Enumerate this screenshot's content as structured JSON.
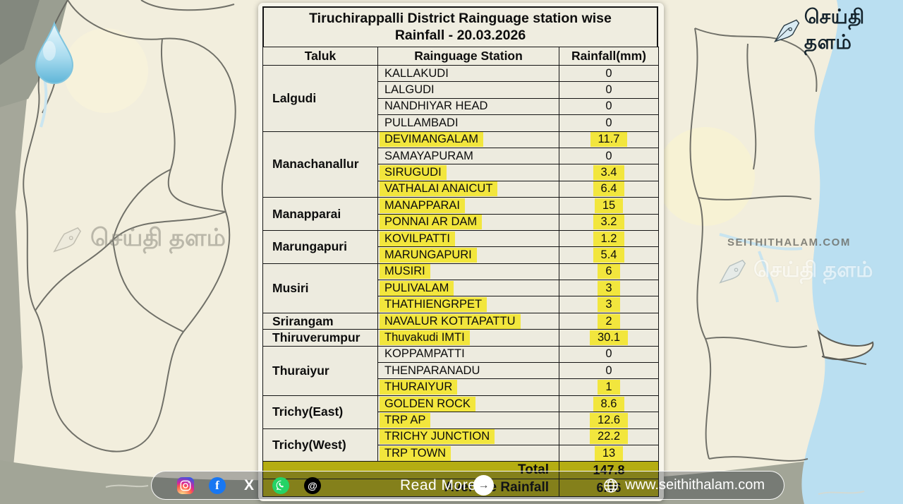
{
  "header": {
    "title_line1": "Tiruchirappalli District Rainguage station wise",
    "title_line2": "Rainfall - 20.03.2026"
  },
  "table": {
    "columns": [
      "Taluk",
      "Rainguage Station",
      "Rainfall(mm)"
    ],
    "groups": [
      {
        "taluk": "Lalgudi",
        "stations": [
          {
            "name": "KALLAKUDI",
            "rainfall": "0",
            "highlight": false
          },
          {
            "name": "LALGUDI",
            "rainfall": "0",
            "highlight": false
          },
          {
            "name": "NANDHIYAR HEAD",
            "rainfall": "0",
            "highlight": false
          },
          {
            "name": "PULLAMBADI",
            "rainfall": "0",
            "highlight": false
          }
        ]
      },
      {
        "taluk": "Manachanallur",
        "stations": [
          {
            "name": "DEVIMANGALAM",
            "rainfall": "11.7",
            "highlight": true
          },
          {
            "name": "SAMAYAPURAM",
            "rainfall": "0",
            "highlight": false
          },
          {
            "name": "SIRUGUDI",
            "rainfall": "3.4",
            "highlight": true
          },
          {
            "name": "VATHALAI ANAICUT",
            "rainfall": "6.4",
            "highlight": true
          }
        ]
      },
      {
        "taluk": "Manapparai",
        "stations": [
          {
            "name": "MANAPPARAI",
            "rainfall": "15",
            "highlight": true
          },
          {
            "name": "PONNAI AR DAM",
            "rainfall": "3.2",
            "highlight": true
          }
        ]
      },
      {
        "taluk": "Marungapuri",
        "stations": [
          {
            "name": "KOVILPATTI",
            "rainfall": "1.2",
            "highlight": true
          },
          {
            "name": "MARUNGAPURI",
            "rainfall": "5.4",
            "highlight": true
          }
        ]
      },
      {
        "taluk": "Musiri",
        "stations": [
          {
            "name": "MUSIRI",
            "rainfall": "6",
            "highlight": true
          },
          {
            "name": "PULIVALAM",
            "rainfall": "3",
            "highlight": true
          },
          {
            "name": "THATHIENGRPET",
            "rainfall": "3",
            "highlight": true
          }
        ]
      },
      {
        "taluk": "Srirangam",
        "stations": [
          {
            "name": "NAVALUR KOTTAPATTU",
            "rainfall": "2",
            "highlight": true
          }
        ]
      },
      {
        "taluk": "Thiruverumpur",
        "stations": [
          {
            "name": "Thuvakudi IMTI",
            "rainfall": "30.1",
            "highlight": true
          }
        ]
      },
      {
        "taluk": "Thuraiyur",
        "stations": [
          {
            "name": "KOPPAMPATTI",
            "rainfall": "0",
            "highlight": false
          },
          {
            "name": "THENPARANADU",
            "rainfall": "0",
            "highlight": false
          },
          {
            "name": "THURAIYUR",
            "rainfall": "1",
            "highlight": true
          }
        ]
      },
      {
        "taluk": "Trichy(East)",
        "stations": [
          {
            "name": "GOLDEN ROCK",
            "rainfall": "8.6",
            "highlight": true
          },
          {
            "name": "TRP AP",
            "rainfall": "12.6",
            "highlight": true
          }
        ]
      },
      {
        "taluk": "Trichy(West)",
        "stations": [
          {
            "name": "TRICHY JUNCTION",
            "rainfall": "22.2",
            "highlight": true
          },
          {
            "name": "TRP TOWN",
            "rainfall": "13",
            "highlight": true
          }
        ]
      }
    ],
    "total_label": "Total",
    "total_value": "147.8",
    "average_label": "Average Rainfall",
    "average_value": "6.16"
  },
  "chart_data": {
    "type": "table",
    "title": "Tiruchirappalli District Rainguage station wise Rainfall - 20.03.2026",
    "columns": [
      "Taluk",
      "Rainguage Station",
      "Rainfall(mm)"
    ],
    "rows": [
      [
        "Lalgudi",
        "KALLAKUDI",
        0
      ],
      [
        "Lalgudi",
        "LALGUDI",
        0
      ],
      [
        "Lalgudi",
        "NANDHIYAR HEAD",
        0
      ],
      [
        "Lalgudi",
        "PULLAMBADI",
        0
      ],
      [
        "Manachanallur",
        "DEVIMANGALAM",
        11.7
      ],
      [
        "Manachanallur",
        "SAMAYAPURAM",
        0
      ],
      [
        "Manachanallur",
        "SIRUGUDI",
        3.4
      ],
      [
        "Manachanallur",
        "VATHALAI ANAICUT",
        6.4
      ],
      [
        "Manapparai",
        "MANAPPARAI",
        15
      ],
      [
        "Manapparai",
        "PONNAI AR DAM",
        3.2
      ],
      [
        "Marungapuri",
        "KOVILPATTI",
        1.2
      ],
      [
        "Marungapuri",
        "MARUNGAPURI",
        5.4
      ],
      [
        "Musiri",
        "MUSIRI",
        6
      ],
      [
        "Musiri",
        "PULIVALAM",
        3
      ],
      [
        "Musiri",
        "THATHIENGRPET",
        3
      ],
      [
        "Srirangam",
        "NAVALUR KOTTAPATTU",
        2
      ],
      [
        "Thiruverumpur",
        "Thuvakudi IMTI",
        30.1
      ],
      [
        "Thuraiyur",
        "KOPPAMPATTI",
        0
      ],
      [
        "Thuraiyur",
        "THENPARANADU",
        0
      ],
      [
        "Thuraiyur",
        "THURAIYUR",
        1
      ],
      [
        "Trichy(East)",
        "GOLDEN ROCK",
        8.6
      ],
      [
        "Trichy(East)",
        "TRP AP",
        12.6
      ],
      [
        "Trichy(West)",
        "TRICHY JUNCTION",
        22.2
      ],
      [
        "Trichy(West)",
        "TRP TOWN",
        13
      ]
    ],
    "total": 147.8,
    "average": 6.16
  },
  "branding": {
    "logo_text": "செய்தி தளம்",
    "watermark_left": "செய்தி தளம்",
    "watermark_right_caps": "SEITHITHALAM.COM",
    "watermark_right_tamil": "செய்தி தளம்"
  },
  "footer": {
    "read_more": "Read More",
    "arrow": "→",
    "website": "www.seithithalam.com",
    "facebook_glyph": "f",
    "x_glyph": "X",
    "threads_glyph": "@"
  },
  "colors": {
    "highlight": "#f2e63d",
    "total_row": "#b5ad12",
    "land": "#f2eedd",
    "sea": "#badff1",
    "outer_gray": "#a5a79a"
  }
}
